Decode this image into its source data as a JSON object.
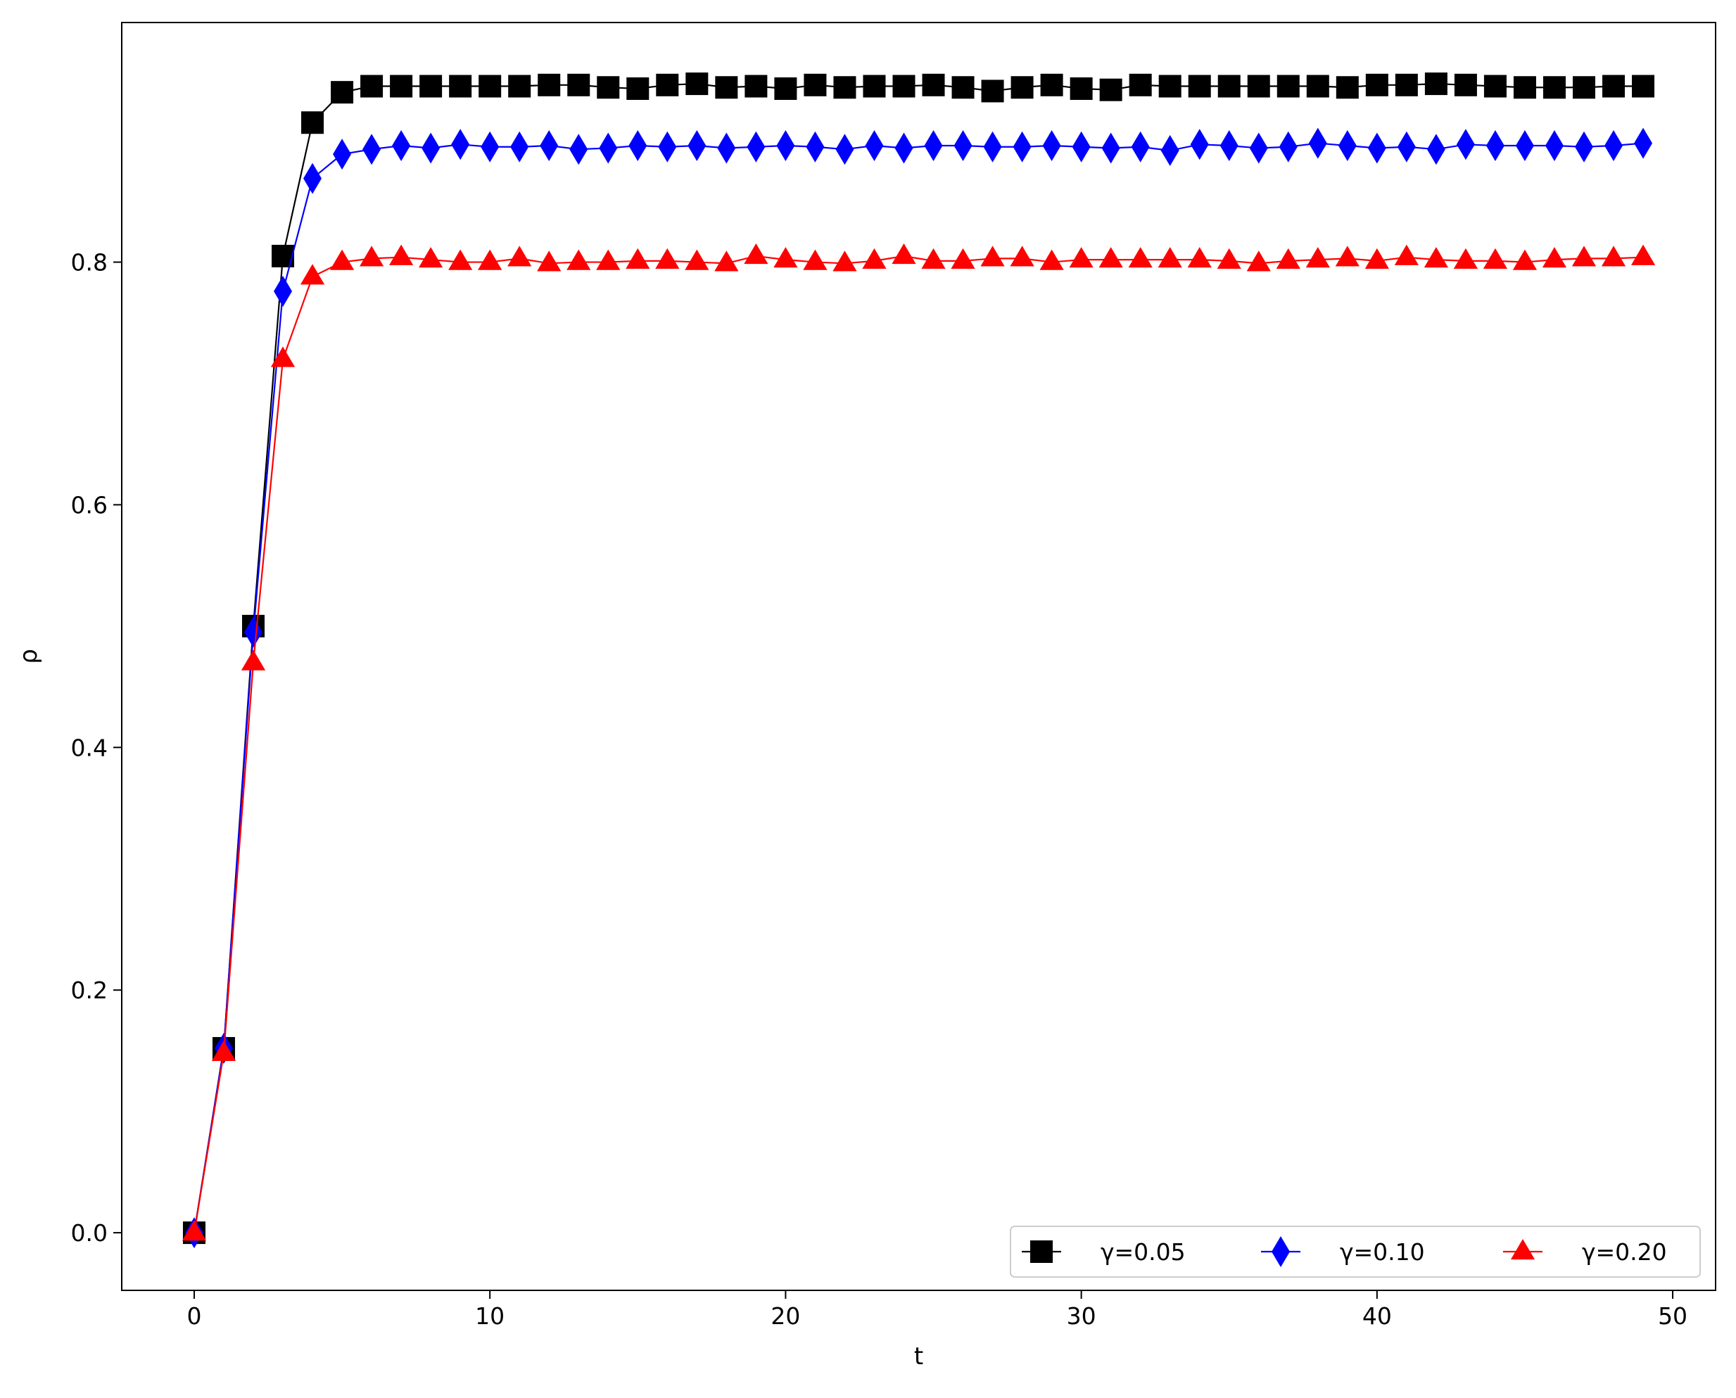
{
  "chart_data": {
    "type": "line",
    "title": "",
    "xlabel": "t",
    "ylabel": "ρ",
    "xlim": [
      -2.45,
      51.45
    ],
    "ylim": [
      -0.0475,
      0.9975
    ],
    "xticks": [
      0,
      10,
      20,
      30,
      40,
      50
    ],
    "xtick_labels": [
      "0",
      "10",
      "20",
      "30",
      "40",
      "50"
    ],
    "yticks": [
      0.0,
      0.2,
      0.4,
      0.6,
      0.8
    ],
    "ytick_labels": [
      "0.0",
      "0.2",
      "0.4",
      "0.6",
      "0.8"
    ],
    "grid": false,
    "legend_position": "lower-right",
    "x": [
      0,
      1,
      2,
      3,
      4,
      5,
      6,
      7,
      8,
      9,
      10,
      11,
      12,
      13,
      14,
      15,
      16,
      17,
      18,
      19,
      20,
      21,
      22,
      23,
      24,
      25,
      26,
      27,
      28,
      29,
      30,
      31,
      32,
      33,
      34,
      35,
      36,
      37,
      38,
      39,
      40,
      41,
      42,
      43,
      44,
      45,
      46,
      47,
      48,
      49
    ],
    "series": [
      {
        "name": "γ=0.05",
        "color": "#000000",
        "marker": "square",
        "values": [
          0.0,
          0.152,
          0.5,
          0.805,
          0.915,
          0.94,
          0.945,
          0.945,
          0.945,
          0.945,
          0.945,
          0.945,
          0.946,
          0.946,
          0.944,
          0.943,
          0.946,
          0.947,
          0.944,
          0.945,
          0.943,
          0.946,
          0.944,
          0.945,
          0.945,
          0.946,
          0.944,
          0.941,
          0.944,
          0.946,
          0.943,
          0.942,
          0.946,
          0.945,
          0.945,
          0.945,
          0.945,
          0.945,
          0.945,
          0.944,
          0.946,
          0.946,
          0.947,
          0.946,
          0.945,
          0.944,
          0.944,
          0.944,
          0.945,
          0.945
        ]
      },
      {
        "name": "γ=0.10",
        "color": "#0000ff",
        "marker": "diamond",
        "values": [
          0.0,
          0.152,
          0.495,
          0.776,
          0.869,
          0.889,
          0.893,
          0.896,
          0.894,
          0.897,
          0.895,
          0.895,
          0.896,
          0.893,
          0.894,
          0.896,
          0.895,
          0.896,
          0.894,
          0.895,
          0.896,
          0.895,
          0.893,
          0.896,
          0.894,
          0.896,
          0.896,
          0.895,
          0.895,
          0.896,
          0.895,
          0.894,
          0.895,
          0.892,
          0.897,
          0.896,
          0.894,
          0.895,
          0.898,
          0.896,
          0.894,
          0.895,
          0.893,
          0.897,
          0.896,
          0.896,
          0.896,
          0.895,
          0.896,
          0.898
        ]
      },
      {
        "name": "γ=0.20",
        "color": "#ff0000",
        "marker": "triangle",
        "values": [
          0.0,
          0.148,
          0.47,
          0.72,
          0.788,
          0.8,
          0.803,
          0.804,
          0.802,
          0.8,
          0.8,
          0.803,
          0.799,
          0.8,
          0.8,
          0.801,
          0.801,
          0.8,
          0.799,
          0.805,
          0.802,
          0.8,
          0.799,
          0.801,
          0.805,
          0.801,
          0.801,
          0.803,
          0.803,
          0.8,
          0.802,
          0.802,
          0.802,
          0.802,
          0.802,
          0.801,
          0.799,
          0.801,
          0.802,
          0.803,
          0.801,
          0.804,
          0.802,
          0.801,
          0.801,
          0.8,
          0.802,
          0.803,
          0.803,
          0.804
        ]
      }
    ]
  }
}
